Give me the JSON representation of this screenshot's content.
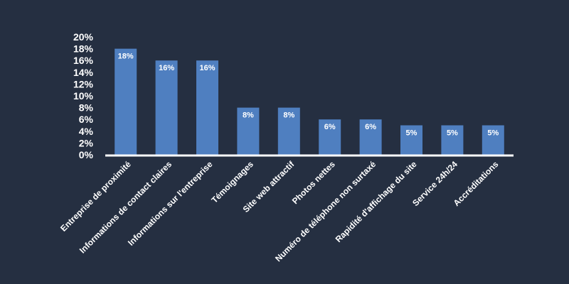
{
  "colors": {
    "background": "#252f41",
    "bar": "#4f7fc0",
    "axis": "#ffffff",
    "text": "#ffffff"
  },
  "chart_data": {
    "type": "bar",
    "title": "",
    "xlabel": "",
    "ylabel": "",
    "ylim": [
      0,
      20
    ],
    "yticks": [
      "0%",
      "2%",
      "4%",
      "6%",
      "8%",
      "10%",
      "12%",
      "14%",
      "16%",
      "18%",
      "20%"
    ],
    "grid": false,
    "legend": "none",
    "categories": [
      "Entreprise de proximité",
      "Informations de contact claires",
      "Informations sur l'entreprise",
      "Témoignages",
      "Site web attractif",
      "Photos nettes",
      "Numéro de téléphone non surtaxé",
      "Rapidité d'affichage du site",
      "Service 24h/24",
      "Accréditations"
    ],
    "values": [
      18,
      16,
      16,
      8,
      8,
      6,
      6,
      5,
      5,
      5
    ],
    "data_labels": [
      "18%",
      "16%",
      "16%",
      "8%",
      "8%",
      "6%",
      "6%",
      "5%",
      "5%",
      "5%"
    ]
  }
}
